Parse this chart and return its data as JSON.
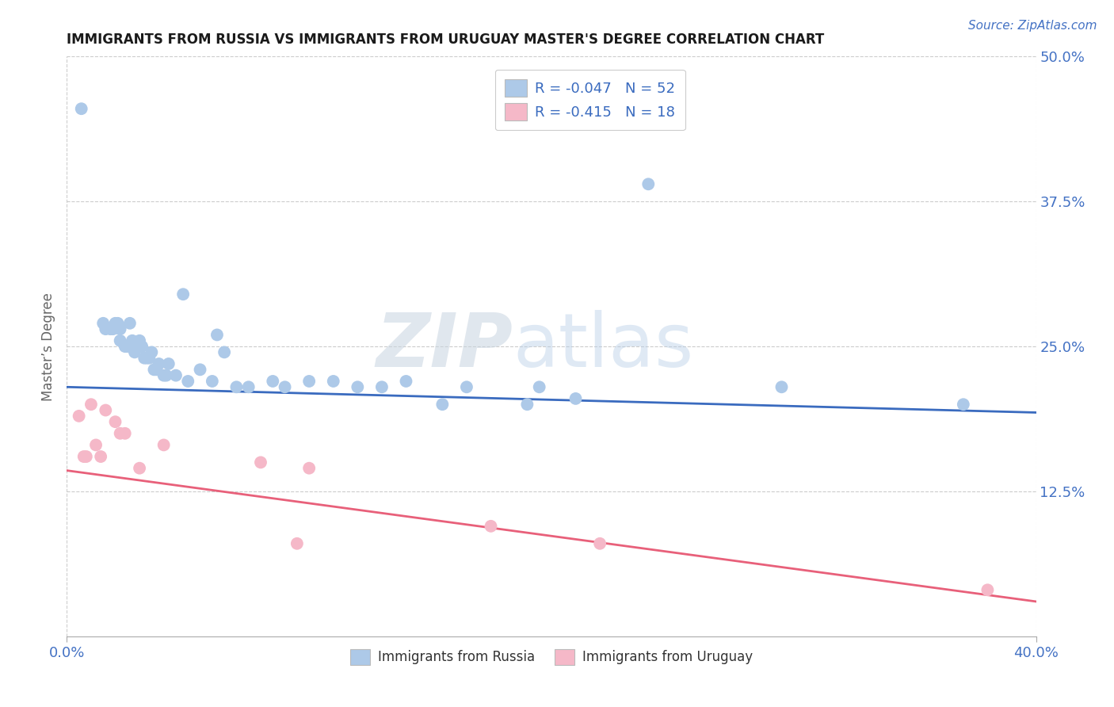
{
  "title": "IMMIGRANTS FROM RUSSIA VS IMMIGRANTS FROM URUGUAY MASTER'S DEGREE CORRELATION CHART",
  "source_text": "Source: ZipAtlas.com",
  "ylabel": "Master’s Degree",
  "xlim": [
    0.0,
    0.4
  ],
  "ylim": [
    0.0,
    0.5
  ],
  "xtick_positions": [
    0.0,
    0.4
  ],
  "xtick_labels": [
    "0.0%",
    "40.0%"
  ],
  "ytick_positions": [
    0.125,
    0.25,
    0.375,
    0.5
  ],
  "ytick_labels": [
    "12.5%",
    "25.0%",
    "37.5%",
    "50.0%"
  ],
  "russia_color": "#adc9e8",
  "russia_line_color": "#3a6bbf",
  "uruguay_color": "#f5b8c8",
  "uruguay_line_color": "#e8607a",
  "russia_R": -0.047,
  "russia_N": 52,
  "uruguay_R": -0.415,
  "uruguay_N": 18,
  "legend_text_color": "#3a6bbf",
  "watermark_zip": "ZIP",
  "watermark_atlas": "atlas",
  "russia_x": [
    0.006,
    0.015,
    0.016,
    0.018,
    0.019,
    0.02,
    0.021,
    0.022,
    0.022,
    0.024,
    0.025,
    0.026,
    0.027,
    0.028,
    0.028,
    0.03,
    0.03,
    0.031,
    0.032,
    0.033,
    0.034,
    0.035,
    0.036,
    0.037,
    0.038,
    0.04,
    0.041,
    0.042,
    0.045,
    0.048,
    0.05,
    0.055,
    0.06,
    0.062,
    0.065,
    0.07,
    0.075,
    0.085,
    0.09,
    0.1,
    0.11,
    0.12,
    0.13,
    0.14,
    0.155,
    0.165,
    0.19,
    0.195,
    0.21,
    0.24,
    0.295,
    0.37
  ],
  "russia_y": [
    0.455,
    0.27,
    0.265,
    0.265,
    0.265,
    0.27,
    0.27,
    0.265,
    0.255,
    0.25,
    0.25,
    0.27,
    0.255,
    0.25,
    0.245,
    0.25,
    0.255,
    0.25,
    0.24,
    0.24,
    0.24,
    0.245,
    0.23,
    0.23,
    0.235,
    0.225,
    0.225,
    0.235,
    0.225,
    0.295,
    0.22,
    0.23,
    0.22,
    0.26,
    0.245,
    0.215,
    0.215,
    0.22,
    0.215,
    0.22,
    0.22,
    0.215,
    0.215,
    0.22,
    0.2,
    0.215,
    0.2,
    0.215,
    0.205,
    0.39,
    0.215,
    0.2
  ],
  "uruguay_x": [
    0.005,
    0.007,
    0.008,
    0.01,
    0.012,
    0.014,
    0.016,
    0.02,
    0.022,
    0.024,
    0.03,
    0.04,
    0.08,
    0.095,
    0.1,
    0.175,
    0.22,
    0.38
  ],
  "uruguay_y": [
    0.19,
    0.155,
    0.155,
    0.2,
    0.165,
    0.155,
    0.195,
    0.185,
    0.175,
    0.175,
    0.145,
    0.165,
    0.15,
    0.08,
    0.145,
    0.095,
    0.08,
    0.04
  ],
  "russia_line_x0": 0.0,
  "russia_line_y0": 0.215,
  "russia_line_x1": 0.4,
  "russia_line_y1": 0.193,
  "uruguay_line_x0": 0.0,
  "uruguay_line_y0": 0.143,
  "uruguay_line_x1": 0.4,
  "uruguay_line_y1": 0.03
}
